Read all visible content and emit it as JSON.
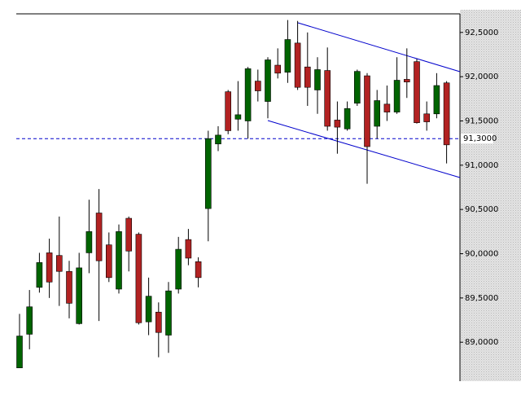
{
  "chart_data": {
    "type": "candlestick",
    "categories": [
      null,
      null,
      null,
      null,
      null,
      null,
      null,
      null,
      null,
      null,
      null,
      null,
      null,
      null,
      null,
      null,
      null,
      null,
      null,
      null,
      null,
      null,
      null,
      null,
      null,
      null,
      null,
      null,
      null,
      null,
      null,
      null,
      null,
      null,
      null,
      null,
      null,
      null,
      null,
      null,
      null,
      null,
      null,
      null
    ],
    "open": [
      88.71,
      89.09,
      89.62,
      90.01,
      89.98,
      89.8,
      89.21,
      90.01,
      90.46,
      90.1,
      89.6,
      90.4,
      90.22,
      89.23,
      89.34,
      89.08,
      89.6,
      90.16,
      89.91,
      90.51,
      91.24,
      91.83,
      91.52,
      91.5,
      91.95,
      91.72,
      92.13,
      92.05,
      92.38,
      92.11,
      91.85,
      92.07,
      91.51,
      91.41,
      91.7,
      92.01,
      91.44,
      91.69,
      91.6,
      91.97,
      92.17,
      91.58,
      91.58,
      91.93
    ],
    "high": [
      89.32,
      89.59,
      90.01,
      90.17,
      90.42,
      89.92,
      90.01,
      90.61,
      90.73,
      90.24,
      90.33,
      90.42,
      90.24,
      89.73,
      89.45,
      89.68,
      90.19,
      90.28,
      89.96,
      91.39,
      91.44,
      91.85,
      91.95,
      92.11,
      92.08,
      92.22,
      92.32,
      92.64,
      92.63,
      92.5,
      92.22,
      92.33,
      91.72,
      91.72,
      92.08,
      92.04,
      91.85,
      91.9,
      92.22,
      92.32,
      92.2,
      91.72,
      92.04,
      91.95
    ],
    "low": [
      88.71,
      88.92,
      89.56,
      89.5,
      89.41,
      89.27,
      89.2,
      89.78,
      89.24,
      89.68,
      89.55,
      89.8,
      89.2,
      89.08,
      88.83,
      88.88,
      89.55,
      89.87,
      89.62,
      90.14,
      91.16,
      91.35,
      91.39,
      91.3,
      91.72,
      91.53,
      91.98,
      91.93,
      91.85,
      91.67,
      91.58,
      91.39,
      91.13,
      91.39,
      91.67,
      90.79,
      91.3,
      91.5,
      91.58,
      91.76,
      91.47,
      91.39,
      91.53,
      91.02
    ],
    "close": [
      89.07,
      89.4,
      89.9,
      89.68,
      89.8,
      89.44,
      89.84,
      90.25,
      89.92,
      89.73,
      90.25,
      90.03,
      89.22,
      89.52,
      89.11,
      89.58,
      90.05,
      89.95,
      89.73,
      91.3,
      91.34,
      91.39,
      91.57,
      92.09,
      91.84,
      92.19,
      92.04,
      92.42,
      91.88,
      91.88,
      92.08,
      91.44,
      91.43,
      91.64,
      92.06,
      91.21,
      91.73,
      91.6,
      91.96,
      91.94,
      91.48,
      91.49,
      91.9,
      91.23
    ],
    "up_color": "#006400",
    "down_color": "#b22222",
    "ylim": [
      88.56,
      92.71
    ],
    "yticks": [
      {
        "value": 89.0,
        "label": "89,0000"
      },
      {
        "value": 89.5,
        "label": "89,5000"
      },
      {
        "value": 90.0,
        "label": "90,0000"
      },
      {
        "value": 90.5,
        "label": "90,5000"
      },
      {
        "value": 91.0,
        "label": "91,0000"
      },
      {
        "value": 91.5,
        "label": "91,5000"
      },
      {
        "value": 92.0,
        "label": "92,0000"
      },
      {
        "value": 92.5,
        "label": "92,5000"
      }
    ],
    "reference_line": {
      "value": 91.3,
      "label": "91,3000",
      "color": "#0000cc"
    }
  }
}
